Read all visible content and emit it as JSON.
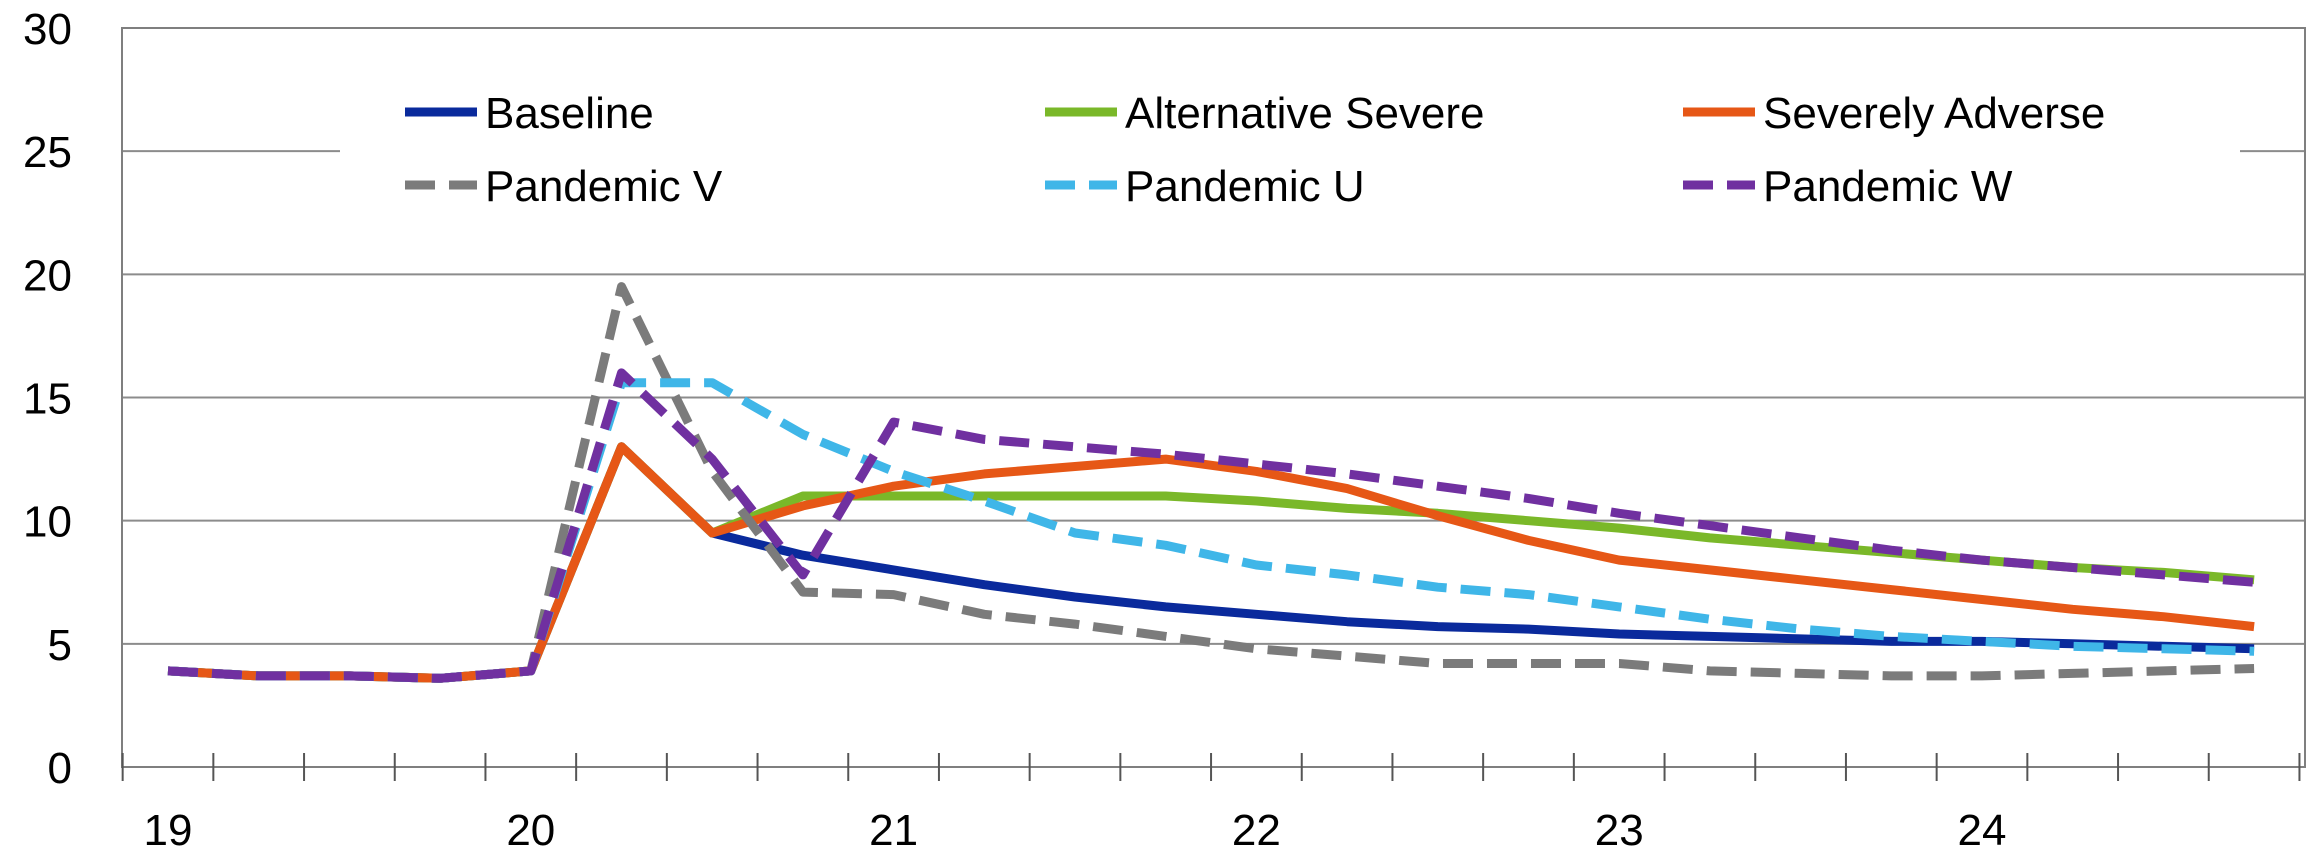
{
  "chart_data": {
    "type": "line",
    "title": "",
    "xlabel": "",
    "ylabel": "",
    "ylim": [
      0,
      30
    ],
    "yticks": [
      0,
      5,
      10,
      15,
      20,
      25,
      30
    ],
    "ytick_labels": [
      "0",
      "5",
      "10",
      "15",
      "20",
      "25",
      "30"
    ],
    "xtick_labels": [
      "19",
      "20",
      "21",
      "22",
      "23",
      "24"
    ],
    "grid": "horizontal",
    "legend_position": "top",
    "x": [
      "2019Q1",
      "2019Q2",
      "2019Q3",
      "2019Q4",
      "2020Q1",
      "2020Q2",
      "2020Q3",
      "2020Q4",
      "2021Q1",
      "2021Q2",
      "2021Q3",
      "2021Q4",
      "2022Q1",
      "2022Q2",
      "2022Q3",
      "2022Q4",
      "2023Q1",
      "2023Q2",
      "2023Q3",
      "2023Q4",
      "2024Q1",
      "2024Q2",
      "2024Q3",
      "2024Q4"
    ],
    "series": [
      {
        "name": "Baseline",
        "color": "#0a2a9c",
        "dash": "solid",
        "values": [
          3.9,
          3.7,
          3.7,
          3.6,
          3.9,
          13.0,
          9.5,
          8.6,
          8.0,
          7.4,
          6.9,
          6.5,
          6.2,
          5.9,
          5.7,
          5.6,
          5.4,
          5.3,
          5.2,
          5.1,
          5.1,
          5.0,
          4.9,
          4.8
        ]
      },
      {
        "name": "Alternative Severe",
        "color": "#7ab829",
        "dash": "solid",
        "values": [
          3.9,
          3.7,
          3.7,
          3.6,
          3.9,
          13.0,
          9.5,
          11.0,
          11.0,
          11.0,
          11.0,
          11.0,
          10.8,
          10.5,
          10.3,
          10.0,
          9.7,
          9.3,
          9.0,
          8.7,
          8.4,
          8.1,
          7.9,
          7.6
        ]
      },
      {
        "name": "Severely Adverse",
        "color": "#e65716",
        "dash": "solid",
        "values": [
          3.9,
          3.7,
          3.7,
          3.6,
          3.9,
          13.0,
          9.5,
          10.6,
          11.4,
          11.9,
          12.2,
          12.5,
          12.0,
          11.3,
          10.2,
          9.2,
          8.4,
          8.0,
          7.6,
          7.2,
          6.8,
          6.4,
          6.1,
          5.7
        ]
      },
      {
        "name": "Pandemic V",
        "color": "#7b7b7b",
        "dash": "dashed",
        "values": [
          3.9,
          3.7,
          3.7,
          3.6,
          3.9,
          19.5,
          12.0,
          7.1,
          7.0,
          6.2,
          5.8,
          5.3,
          4.8,
          4.5,
          4.2,
          4.2,
          4.2,
          3.9,
          3.8,
          3.7,
          3.7,
          3.8,
          3.9,
          4.0
        ]
      },
      {
        "name": "Pandemic U",
        "color": "#3fb6e8",
        "dash": "dashed",
        "values": [
          3.9,
          3.7,
          3.7,
          3.6,
          3.9,
          15.6,
          15.6,
          13.5,
          12.0,
          10.8,
          9.5,
          9.0,
          8.2,
          7.8,
          7.3,
          7.0,
          6.5,
          6.0,
          5.6,
          5.3,
          5.1,
          4.9,
          4.8,
          4.7
        ]
      },
      {
        "name": "Pandemic W",
        "color": "#7030a0",
        "dash": "dashed",
        "values": [
          3.9,
          3.7,
          3.7,
          3.6,
          3.9,
          16.0,
          12.5,
          7.8,
          14.0,
          13.3,
          13.0,
          12.7,
          12.3,
          11.9,
          11.4,
          10.9,
          10.3,
          9.8,
          9.3,
          8.8,
          8.4,
          8.1,
          7.8,
          7.5
        ]
      }
    ]
  }
}
